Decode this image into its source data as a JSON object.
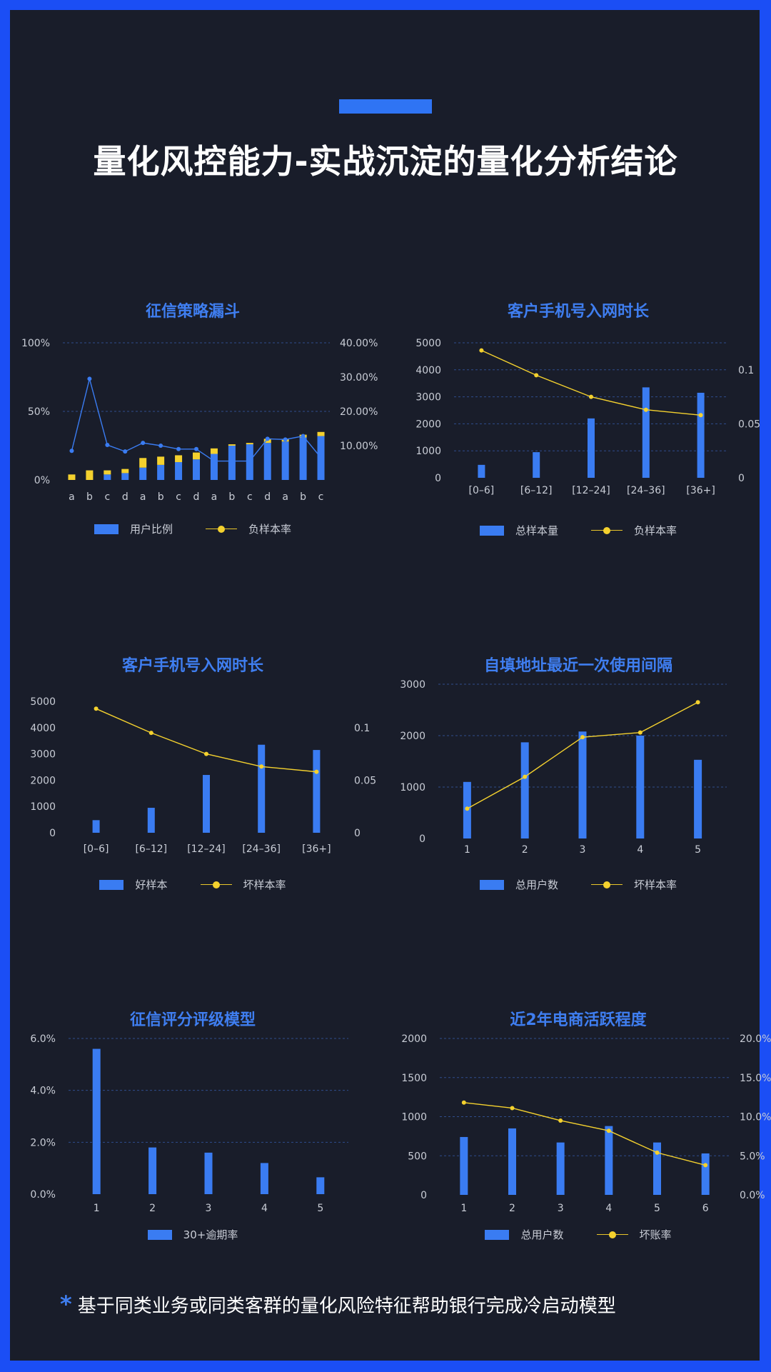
{
  "header": {
    "title": "量化风控能力-实战沉淀的量化分析结论",
    "accent_color": "#2f74f4"
  },
  "footnote": {
    "star": "*",
    "text": "基于同类业务或同类客群的量化风险特征帮助银行完成冷启动模型"
  },
  "chart_data": [
    {
      "type": "bar",
      "title": "征信策略漏斗",
      "categories": [
        "a",
        "b",
        "c",
        "d",
        "a",
        "b",
        "c",
        "d",
        "a",
        "b",
        "c",
        "d",
        "a",
        "b",
        "c"
      ],
      "stacked": true,
      "series": [
        {
          "name": "用户比例",
          "kind": "bar",
          "axis": "left",
          "values": [
            0,
            0,
            4,
            5,
            9,
            11,
            13,
            15,
            19,
            25,
            26,
            27,
            28,
            31,
            32
          ],
          "color": "#3a7cf2"
        },
        {
          "kind": "bar",
          "axis": "left",
          "values": [
            4,
            7,
            3,
            3,
            7,
            6,
            5,
            5,
            4,
            1,
            1,
            3,
            2,
            2,
            3
          ],
          "color": "#f4d12e"
        },
        {
          "name": "负样本率",
          "kind": "line",
          "axis": "right",
          "values": [
            8.5,
            29.5,
            10.2,
            8.3,
            10.8,
            10,
            9,
            9,
            5.5,
            5.5,
            5.5,
            12,
            11.8,
            12.8,
            6.5
          ],
          "color": "#3a7cf2"
        }
      ],
      "y_left": {
        "ticks": [
          "0%",
          "50%",
          "100%"
        ],
        "range": [
          0,
          100
        ]
      },
      "y_right": {
        "ticks": [
          "10.00%",
          "20.00%",
          "30.00%",
          "40.00%"
        ],
        "range": [
          0,
          40
        ]
      },
      "legend": [
        "用户比例",
        "负样本率"
      ],
      "grid": true,
      "legend_position": "bottom"
    },
    {
      "type": "bar",
      "title": "客户手机号入网时长",
      "categories": [
        "[0–6]",
        "[6–12]",
        "[12–24]",
        "[24–36]",
        "[36+]"
      ],
      "series": [
        {
          "name": "总样本量",
          "kind": "bar",
          "axis": "left",
          "values": [
            480,
            950,
            2200,
            3350,
            3150
          ],
          "color": "#3a7cf2"
        },
        {
          "name": "负样本率",
          "kind": "line",
          "axis": "right",
          "values": [
            0.118,
            0.095,
            0.075,
            0.063,
            0.058
          ],
          "color": "#f4d12e"
        }
      ],
      "y_left": {
        "ticks": [
          "0",
          "1000",
          "2000",
          "3000",
          "4000",
          "5000"
        ],
        "range": [
          0,
          5000
        ]
      },
      "y_right": {
        "ticks": [
          "0",
          "0.05",
          "0.1"
        ],
        "range": [
          0,
          0.125
        ]
      },
      "legend": [
        "总样本量",
        "负样本率"
      ],
      "grid": true,
      "legend_position": "bottom"
    },
    {
      "type": "bar",
      "title": "客户手机号入网时长",
      "categories": [
        "[0–6]",
        "[6–12]",
        "[12–24]",
        "[24–36]",
        "[36+]"
      ],
      "series": [
        {
          "name": "好样本",
          "kind": "bar",
          "axis": "left",
          "values": [
            480,
            950,
            2200,
            3350,
            3150
          ],
          "color": "#3a7cf2"
        },
        {
          "name": "坏样本率",
          "kind": "line",
          "axis": "right",
          "values": [
            0.118,
            0.095,
            0.075,
            0.063,
            0.058
          ],
          "color": "#f4d12e"
        }
      ],
      "y_left": {
        "ticks": [
          "0",
          "1000",
          "2000",
          "3000",
          "4000",
          "5000"
        ],
        "range": [
          0,
          5000
        ]
      },
      "y_right": {
        "ticks": [
          "0",
          "0.05",
          "0.1"
        ],
        "range": [
          0,
          0.125
        ]
      },
      "legend": [
        "好样本",
        "坏样本率"
      ],
      "grid": false,
      "legend_position": "bottom"
    },
    {
      "type": "bar",
      "title": "自填地址最近一次使用间隔",
      "categories": [
        "1",
        "2",
        "3",
        "4",
        "5"
      ],
      "series": [
        {
          "name": "总用户数",
          "kind": "bar",
          "axis": "left",
          "values": [
            1100,
            1870,
            2080,
            2000,
            1530
          ],
          "color": "#3a7cf2"
        },
        {
          "name": "坏样本率",
          "kind": "line",
          "axis": "left",
          "values": [
            580,
            1200,
            1970,
            2060,
            2650
          ],
          "color": "#f4d12e"
        }
      ],
      "y_left": {
        "ticks": [
          "0",
          "1000",
          "2000",
          "3000"
        ],
        "range": [
          0,
          3000
        ]
      },
      "legend": [
        "总用户数",
        "坏样本率"
      ],
      "grid": true,
      "legend_position": "bottom"
    },
    {
      "type": "bar",
      "title": "征信评分评级模型",
      "categories": [
        "1",
        "2",
        "3",
        "4",
        "5"
      ],
      "series": [
        {
          "name": "30+逾期率",
          "kind": "bar",
          "axis": "left",
          "values": [
            5.6,
            1.8,
            1.6,
            1.2,
            0.65
          ],
          "color": "#3a7cf2"
        }
      ],
      "y_left": {
        "ticks": [
          "0.0%",
          "2.0%",
          "4.0%",
          "6.0%"
        ],
        "range": [
          0,
          6
        ]
      },
      "legend": [
        "30+逾期率"
      ],
      "grid": true,
      "legend_position": "bottom"
    },
    {
      "type": "bar",
      "title": "近2年电商活跃程度",
      "categories": [
        "1",
        "2",
        "3",
        "4",
        "5",
        "6"
      ],
      "series": [
        {
          "name": "总用户数",
          "kind": "bar",
          "axis": "left",
          "values": [
            740,
            850,
            670,
            880,
            670,
            530
          ],
          "color": "#3a7cf2"
        },
        {
          "name": "坏账率",
          "kind": "line",
          "axis": "right",
          "values": [
            11.8,
            11.1,
            9.5,
            8.2,
            5.4,
            3.8
          ],
          "color": "#f4d12e"
        }
      ],
      "y_left": {
        "ticks": [
          "0",
          "500",
          "1000",
          "1500",
          "2000"
        ],
        "range": [
          0,
          2000
        ]
      },
      "y_right": {
        "ticks": [
          "0.0%",
          "5.0%",
          "10.0%",
          "15.0%",
          "20.0%"
        ],
        "range": [
          0,
          20
        ]
      },
      "legend": [
        "总用户数",
        "坏账率"
      ],
      "grid": true,
      "legend_position": "bottom"
    }
  ]
}
